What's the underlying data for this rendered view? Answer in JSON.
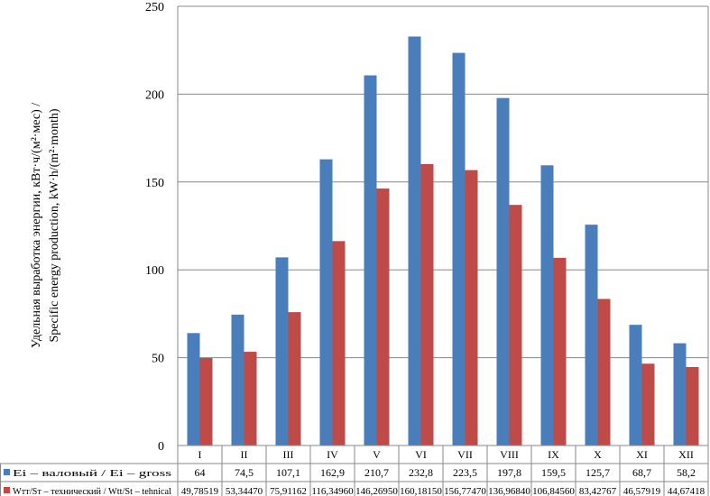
{
  "chart_data": {
    "type": "bar",
    "ylabel_line1": "Удельная выработка энергии, кВт·ч/(м²·мес) /",
    "ylabel_line2": "Specific energy production, kW·h/(m²·month)",
    "ylim": [
      0,
      250
    ],
    "yticks": [
      0,
      50,
      100,
      150,
      200,
      250
    ],
    "grid": true,
    "categories": [
      "I",
      "II",
      "III",
      "IV",
      "V",
      "VI",
      "VII",
      "VIII",
      "IX",
      "X",
      "XI",
      "XII"
    ],
    "series": [
      {
        "name": "Ei – валовый / Ei – gross",
        "color": "#4a7ebb",
        "values": [
          64,
          74.5,
          107.1,
          162.9,
          210.7,
          232.8,
          223.5,
          197.8,
          159.5,
          125.7,
          68.7,
          58.2
        ],
        "labels": [
          "64",
          "74,5",
          "107,1",
          "162,9",
          "210,7",
          "232,8",
          "223,5",
          "197,8",
          "159,5",
          "125,7",
          "68,7",
          "58,2"
        ]
      },
      {
        "name": "Wтт/Sт – технический / Wtt/St – tehnical",
        "color": "#be4b48",
        "values": [
          49.78519,
          53.3447,
          75.91162,
          116.3496,
          146.2695,
          160.1815,
          156.7747,
          136.9684,
          106.8456,
          83.42767,
          46.57919,
          44.67418
        ],
        "labels": [
          "49,78519",
          "53,34470",
          "75,91162",
          "116,34960",
          "146,26950",
          "160,18150",
          "156,77470",
          "136,96840",
          "106,84560",
          "83,42767",
          "46,57919",
          "44,67418"
        ]
      }
    ]
  }
}
